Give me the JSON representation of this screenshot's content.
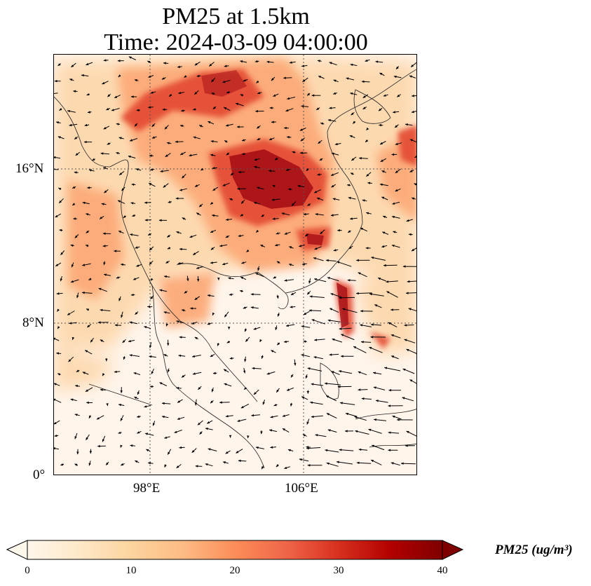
{
  "title": {
    "line1": "PM25 at 1.5km",
    "line2": "Time: 2024-03-09 04:00:00"
  },
  "axes": {
    "lat_ticks": [
      "16°N",
      "8°N",
      "0°"
    ],
    "lon_ticks": [
      "98°E",
      "106°E"
    ]
  },
  "colorbar": {
    "ticks": [
      "0",
      "10",
      "20",
      "30",
      "40"
    ],
    "label": "PM25 (ug/m³)",
    "range": [
      0,
      40
    ],
    "colormap": "OrRd",
    "extend": "both",
    "colors": [
      "#fff7ec",
      "#fee8c8",
      "#fdd49e",
      "#fdbb84",
      "#fc8d59",
      "#ef6548",
      "#d7301f",
      "#b30000",
      "#7f0000"
    ]
  },
  "map": {
    "projection": "PlateCarree",
    "lon_range": [
      93,
      112
    ],
    "lat_range": [
      0,
      22
    ],
    "gridlines": "dotted",
    "overlay": "wind-vectors"
  }
}
